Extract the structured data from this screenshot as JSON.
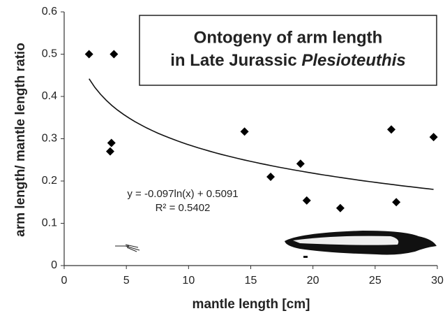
{
  "chart_data": {
    "type": "scatter",
    "title": {
      "line1": "Ontogeny of arm length",
      "line2": "in Late Jurassic",
      "line2_italic": "Plesioteuthis"
    },
    "x_label": "mantle length [cm]",
    "y_label": "arm length/ mantle length ratio",
    "x": [
      2.0,
      4.0,
      3.7,
      3.8,
      14.5,
      16.6,
      19.0,
      19.5,
      22.2,
      26.3,
      26.7,
      29.7
    ],
    "values": [
      0.5,
      0.5,
      0.27,
      0.29,
      0.317,
      0.21,
      0.241,
      0.154,
      0.136,
      0.322,
      0.15,
      0.304
    ],
    "color": "#000000",
    "xlim": [
      0,
      30
    ],
    "xticks": [
      0,
      5,
      10,
      15,
      20,
      25,
      30
    ],
    "ylim": [
      0,
      0.6
    ],
    "yticks": [
      0,
      0.1,
      0.2,
      0.3,
      0.4,
      0.5,
      0.6
    ],
    "trendline": {
      "slope": -0.097,
      "intercept": 0.5091,
      "equation": "y = -0.097ln(x) + 0.5091",
      "r2": "R² = 0.5402"
    }
  }
}
